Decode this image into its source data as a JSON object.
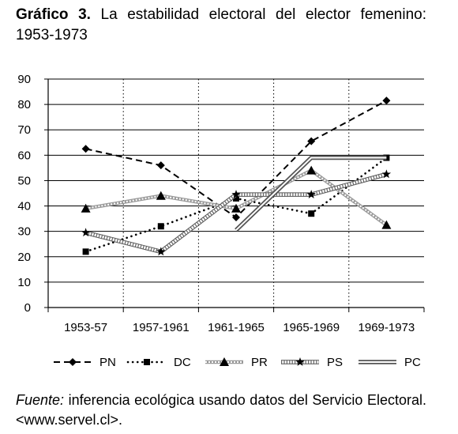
{
  "title": {
    "label": "Gráfico 3.",
    "text": "La estabilidad electoral del elector femenino: 1953-1973"
  },
  "source": {
    "label": "Fuente:",
    "text": "inferencia ecológica usando datos del Servicio Electoral. <www.servel.cl>."
  },
  "chart_data": {
    "type": "line",
    "categories": [
      "1953-57",
      "1957-1961",
      "1961-1965",
      "1965-1969",
      "1969-1973"
    ],
    "ylim": [
      0,
      90
    ],
    "yticks": [
      0,
      10,
      20,
      30,
      40,
      50,
      60,
      70,
      80,
      90
    ],
    "grid": "vertical dotted lines between categories",
    "legend_position": "bottom",
    "series": [
      {
        "name": "PN",
        "style": "dashed",
        "marker": "diamond",
        "color": "#000000",
        "values": [
          62.5,
          56,
          35.5,
          65.5,
          81.5
        ]
      },
      {
        "name": "DC",
        "style": "dotted",
        "marker": "square",
        "color": "#000000",
        "values": [
          22,
          32,
          43,
          37,
          59
        ]
      },
      {
        "name": "PR",
        "style": "textured",
        "marker": "triangle",
        "color": "#aaaaaa",
        "values": [
          39,
          44,
          39,
          54,
          32.5
        ]
      },
      {
        "name": "PS",
        "style": "ladder",
        "marker": "star",
        "color": "#888888",
        "values": [
          29.5,
          22,
          44.5,
          44.5,
          52.5
        ]
      },
      {
        "name": "PC",
        "style": "double",
        "marker": "none",
        "color": "#666666",
        "values": [
          null,
          null,
          30.5,
          59,
          59
        ]
      }
    ]
  }
}
